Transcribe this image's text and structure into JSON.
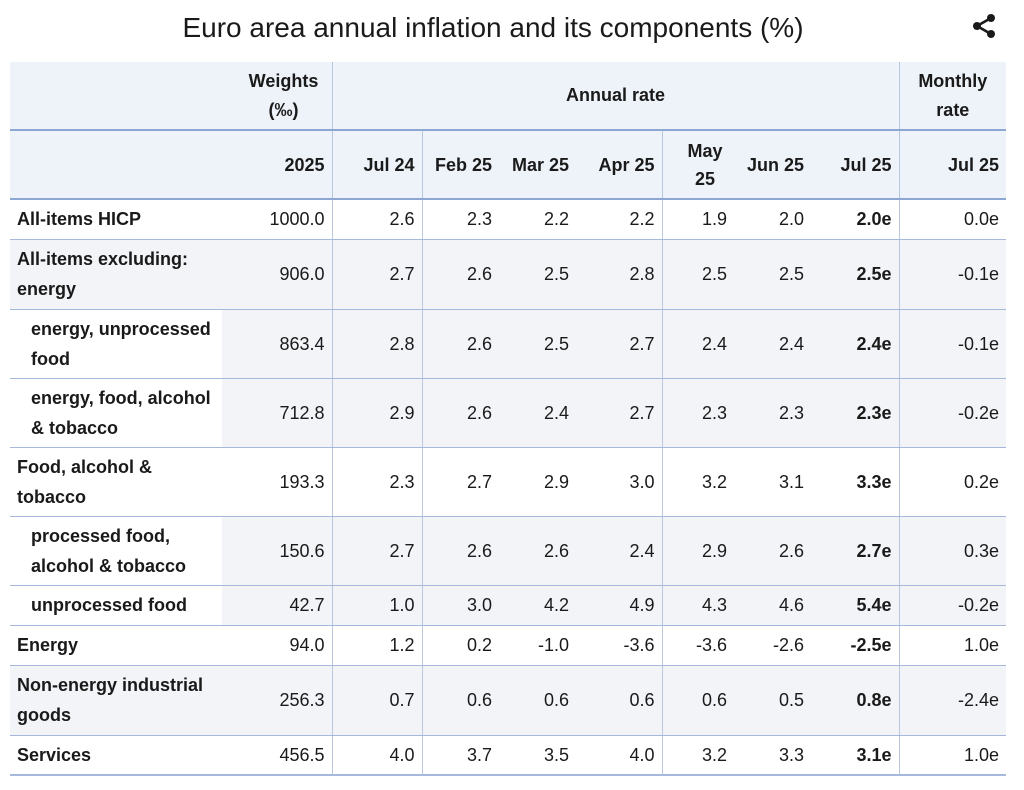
{
  "title": "Euro area annual inflation and its components (%)",
  "share_icon": "share-icon",
  "header": {
    "weights_label": "Weights (‰)",
    "annual_rate_label": "Annual rate",
    "monthly_rate_label": "Monthly rate",
    "weights_year": "2025",
    "annual_months": [
      "Jul 24",
      "Feb 25",
      "Mar 25",
      "Apr 25",
      "May 25",
      "Jun 25",
      "Jul 25"
    ],
    "monthly_month": "Jul 25"
  },
  "rows": [
    {
      "label": "All-items HICP",
      "weight": "1000.0",
      "rates": [
        "2.6",
        "2.3",
        "2.2",
        "2.2",
        "1.9",
        "2.0",
        "2.0e"
      ],
      "monthly": "0.0e"
    },
    {
      "label": "All-items excluding: energy",
      "weight": "906.0",
      "rates": [
        "2.7",
        "2.6",
        "2.5",
        "2.8",
        "2.5",
        "2.5",
        "2.5e"
      ],
      "monthly": "-0.1e"
    },
    {
      "label": "energy, unprocessed food",
      "weight": "863.4",
      "rates": [
        "2.8",
        "2.6",
        "2.5",
        "2.7",
        "2.4",
        "2.4",
        "2.4e"
      ],
      "monthly": "-0.1e"
    },
    {
      "label": "energy, food, alcohol & tobacco",
      "weight": "712.8",
      "rates": [
        "2.9",
        "2.6",
        "2.4",
        "2.7",
        "2.3",
        "2.3",
        "2.3e"
      ],
      "monthly": "-0.2e"
    },
    {
      "label": "Food, alcohol & tobacco",
      "weight": "193.3",
      "rates": [
        "2.3",
        "2.7",
        "2.9",
        "3.0",
        "3.2",
        "3.1",
        "3.3e"
      ],
      "monthly": "0.2e"
    },
    {
      "label": "processed food, alcohol & tobacco",
      "weight": "150.6",
      "rates": [
        "2.7",
        "2.6",
        "2.6",
        "2.4",
        "2.9",
        "2.6",
        "2.7e"
      ],
      "monthly": "0.3e"
    },
    {
      "label": "unprocessed food",
      "weight": "42.7",
      "rates": [
        "1.0",
        "3.0",
        "4.2",
        "4.9",
        "4.3",
        "4.6",
        "5.4e"
      ],
      "monthly": "-0.2e"
    },
    {
      "label": "Energy",
      "weight": "94.0",
      "rates": [
        "1.2",
        "0.2",
        "-1.0",
        "-3.6",
        "-3.6",
        "-2.6",
        "-2.5e"
      ],
      "monthly": "1.0e"
    },
    {
      "label": "Non-energy industrial goods",
      "weight": "256.3",
      "rates": [
        "0.7",
        "0.6",
        "0.6",
        "0.6",
        "0.6",
        "0.5",
        "0.8e"
      ],
      "monthly": "-2.4e"
    },
    {
      "label": "Services",
      "weight": "456.5",
      "rates": [
        "4.0",
        "3.7",
        "3.5",
        "4.0",
        "3.2",
        "3.3",
        "3.1e"
      ],
      "monthly": "1.0e"
    }
  ]
}
